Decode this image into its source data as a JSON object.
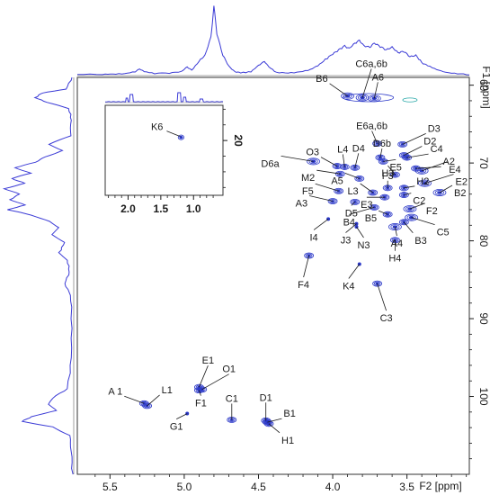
{
  "chart_data": {
    "type": "scatter",
    "subtype": "2D NMR HSQC contour spectrum",
    "xlabel": "F2 [ppm]",
    "ylabel": "F1 [ppm]",
    "xlim": [
      5.72,
      3.08
    ],
    "ylim": [
      59.0,
      110.0
    ],
    "x_inverted": true,
    "y_inverted": true,
    "x_ticks": [
      "5.5",
      "5.0",
      "4.5",
      "4.0",
      "3.5"
    ],
    "x_tick_values": [
      5.5,
      5.0,
      4.5,
      4.0,
      3.5
    ],
    "y_ticks": [
      "60",
      "70",
      "80",
      "90",
      "100"
    ],
    "y_tick_values": [
      60,
      70,
      80,
      90,
      100
    ],
    "grid": false,
    "contour_color": "#2b38c8",
    "spectrum_color": "#3b3bd6",
    "peaks": [
      {
        "label": "A 1",
        "x": 5.27,
        "y": 100.9
      },
      {
        "label": "L1",
        "x": 5.25,
        "y": 101.2
      },
      {
        "label": "E1",
        "x": 4.9,
        "y": 98.8
      },
      {
        "label": "O1",
        "x": 4.88,
        "y": 99.1
      },
      {
        "label": "F1",
        "x": 4.9,
        "y": 99.2
      },
      {
        "label": "G1",
        "x": 4.98,
        "y": 102.2
      },
      {
        "label": "C1",
        "x": 4.68,
        "y": 103.0
      },
      {
        "label": "D1",
        "x": 4.45,
        "y": 103.1
      },
      {
        "label": "B1",
        "x": 4.44,
        "y": 103.3
      },
      {
        "label": "H1",
        "x": 4.43,
        "y": 103.5
      },
      {
        "label": "B6",
        "x": 3.9,
        "y": 61.4
      },
      {
        "label": "C6a,6b",
        "x": 3.8,
        "y": 61.6
      },
      {
        "label": "A6",
        "x": 3.72,
        "y": 61.7
      },
      {
        "label": "E6a,6b",
        "x": 3.7,
        "y": 67.5
      },
      {
        "label": "D6b",
        "x": 3.68,
        "y": 69.3
      },
      {
        "label": "E5",
        "x": 3.66,
        "y": 69.8
      },
      {
        "label": "D6a",
        "x": 4.13,
        "y": 69.8
      },
      {
        "label": "O3",
        "x": 3.97,
        "y": 70.4
      },
      {
        "label": "L4",
        "x": 3.92,
        "y": 70.5
      },
      {
        "label": "D4",
        "x": 3.85,
        "y": 70.6
      },
      {
        "label": "M2",
        "x": 3.95,
        "y": 71.4
      },
      {
        "label": "A5",
        "x": 3.82,
        "y": 72.0
      },
      {
        "label": "D3",
        "x": 3.53,
        "y": 67.6
      },
      {
        "label": "D2",
        "x": 3.52,
        "y": 69.0
      },
      {
        "label": "C4",
        "x": 3.5,
        "y": 69.3
      },
      {
        "label": "A2",
        "x": 3.44,
        "y": 70.7
      },
      {
        "label": "E4",
        "x": 3.4,
        "y": 71.0
      },
      {
        "label": "H3",
        "x": 3.58,
        "y": 71.5
      },
      {
        "label": "E2",
        "x": 3.38,
        "y": 72.6
      },
      {
        "label": "H2",
        "x": 3.52,
        "y": 73.2
      },
      {
        "label": "B2",
        "x": 3.28,
        "y": 73.8
      },
      {
        "label": "F5",
        "x": 3.96,
        "y": 73.6
      },
      {
        "label": "L3",
        "x": 3.73,
        "y": 73.8
      },
      {
        "label": "F3",
        "x": 3.63,
        "y": 73.2
      },
      {
        "label": "E3",
        "x": 3.65,
        "y": 74.4
      },
      {
        "label": "C2",
        "x": 3.52,
        "y": 74.1
      },
      {
        "label": "F2",
        "x": 3.48,
        "y": 75.9
      },
      {
        "label": "A3",
        "x": 4.0,
        "y": 74.9
      },
      {
        "label": "D5",
        "x": 3.85,
        "y": 75.0
      },
      {
        "label": "B4",
        "x": 3.72,
        "y": 75.7
      },
      {
        "label": "B5",
        "x": 3.63,
        "y": 76.6
      },
      {
        "label": "C5",
        "x": 3.47,
        "y": 77.0
      },
      {
        "label": "B3",
        "x": 3.52,
        "y": 77.6
      },
      {
        "label": "A4",
        "x": 3.58,
        "y": 78.2
      },
      {
        "label": "I4",
        "x": 4.03,
        "y": 77.2
      },
      {
        "label": "J3",
        "x": 3.84,
        "y": 77.8
      },
      {
        "label": "N3",
        "x": 3.84,
        "y": 78.2
      },
      {
        "label": "H4",
        "x": 3.58,
        "y": 79.9
      },
      {
        "label": "F4",
        "x": 4.16,
        "y": 81.9
      },
      {
        "label": "K4",
        "x": 3.82,
        "y": 83.0
      },
      {
        "label": "C3",
        "x": 3.7,
        "y": 85.5
      }
    ],
    "inset": {
      "xlim": [
        2.35,
        0.55
      ],
      "ylim": [
        15.5,
        27.0
      ],
      "x_ticks": [
        "2.0",
        "1.5",
        "1.0"
      ],
      "x_tick_values": [
        2.0,
        1.5,
        1.0
      ],
      "y_ticks": [
        "20"
      ],
      "y_tick_values": [
        20
      ],
      "peaks": [
        {
          "label": "K6",
          "x": 1.19,
          "y": 19.6
        }
      ]
    },
    "f2_projection": [
      {
        "x": 5.72,
        "y": 0.01
      },
      {
        "x": 5.55,
        "y": 0.01
      },
      {
        "x": 5.48,
        "y": 0.015
      },
      {
        "x": 5.4,
        "y": 0.02
      },
      {
        "x": 5.33,
        "y": 0.05
      },
      {
        "x": 5.3,
        "y": 0.09
      },
      {
        "x": 5.27,
        "y": 0.05
      },
      {
        "x": 5.2,
        "y": 0.025
      },
      {
        "x": 5.1,
        "y": 0.03
      },
      {
        "x": 5.02,
        "y": 0.05
      },
      {
        "x": 4.98,
        "y": 0.12
      },
      {
        "x": 4.95,
        "y": 0.07
      },
      {
        "x": 4.9,
        "y": 0.2
      },
      {
        "x": 4.86,
        "y": 0.28
      },
      {
        "x": 4.82,
        "y": 0.55
      },
      {
        "x": 4.8,
        "y": 1.0
      },
      {
        "x": 4.78,
        "y": 0.6
      },
      {
        "x": 4.74,
        "y": 0.28
      },
      {
        "x": 4.7,
        "y": 0.13
      },
      {
        "x": 4.66,
        "y": 0.05
      },
      {
        "x": 4.62,
        "y": 0.035
      },
      {
        "x": 4.55,
        "y": 0.05
      },
      {
        "x": 4.5,
        "y": 0.14
      },
      {
        "x": 4.46,
        "y": 0.2
      },
      {
        "x": 4.43,
        "y": 0.12
      },
      {
        "x": 4.38,
        "y": 0.04
      },
      {
        "x": 4.3,
        "y": 0.03
      },
      {
        "x": 4.22,
        "y": 0.045
      },
      {
        "x": 4.15,
        "y": 0.08
      },
      {
        "x": 4.1,
        "y": 0.14
      },
      {
        "x": 4.05,
        "y": 0.22
      },
      {
        "x": 4.0,
        "y": 0.3
      },
      {
        "x": 3.96,
        "y": 0.36
      },
      {
        "x": 3.92,
        "y": 0.42
      },
      {
        "x": 3.89,
        "y": 0.38
      },
      {
        "x": 3.85,
        "y": 0.46
      },
      {
        "x": 3.82,
        "y": 0.5
      },
      {
        "x": 3.79,
        "y": 0.42
      },
      {
        "x": 3.75,
        "y": 0.4
      },
      {
        "x": 3.72,
        "y": 0.46
      },
      {
        "x": 3.68,
        "y": 0.41
      },
      {
        "x": 3.64,
        "y": 0.36
      },
      {
        "x": 3.6,
        "y": 0.4
      },
      {
        "x": 3.56,
        "y": 0.32
      },
      {
        "x": 3.52,
        "y": 0.34
      },
      {
        "x": 3.48,
        "y": 0.26
      },
      {
        "x": 3.44,
        "y": 0.28
      },
      {
        "x": 3.4,
        "y": 0.18
      },
      {
        "x": 3.36,
        "y": 0.14
      },
      {
        "x": 3.3,
        "y": 0.08
      },
      {
        "x": 3.24,
        "y": 0.04
      },
      {
        "x": 3.16,
        "y": 0.02
      },
      {
        "x": 3.08,
        "y": 0.01
      }
    ],
    "f1_projection": [
      {
        "y": 59.0,
        "v": 0.01
      },
      {
        "y": 60.5,
        "v": 0.1
      },
      {
        "y": 61.0,
        "v": 0.45
      },
      {
        "y": 61.6,
        "v": 0.55
      },
      {
        "y": 62.2,
        "v": 0.38
      },
      {
        "y": 63.0,
        "v": 0.06
      },
      {
        "y": 64.5,
        "v": 0.02
      },
      {
        "y": 66.5,
        "v": 0.04
      },
      {
        "y": 67.6,
        "v": 0.35
      },
      {
        "y": 68.4,
        "v": 0.15
      },
      {
        "y": 69.2,
        "v": 0.4
      },
      {
        "y": 69.9,
        "v": 0.55
      },
      {
        "y": 70.6,
        "v": 0.85
      },
      {
        "y": 71.3,
        "v": 0.62
      },
      {
        "y": 72.0,
        "v": 0.9
      },
      {
        "y": 72.6,
        "v": 0.7
      },
      {
        "y": 73.3,
        "v": 1.0
      },
      {
        "y": 74.0,
        "v": 0.78
      },
      {
        "y": 74.7,
        "v": 0.92
      },
      {
        "y": 75.4,
        "v": 0.7
      },
      {
        "y": 76.0,
        "v": 0.95
      },
      {
        "y": 76.7,
        "v": 0.6
      },
      {
        "y": 77.5,
        "v": 0.35
      },
      {
        "y": 78.3,
        "v": 0.2
      },
      {
        "y": 79.2,
        "v": 0.3
      },
      {
        "y": 80.2,
        "v": 0.12
      },
      {
        "y": 81.5,
        "v": 0.2
      },
      {
        "y": 82.5,
        "v": 0.08
      },
      {
        "y": 84.0,
        "v": 0.05
      },
      {
        "y": 85.5,
        "v": 0.12
      },
      {
        "y": 87.0,
        "v": 0.03
      },
      {
        "y": 90.0,
        "v": 0.02
      },
      {
        "y": 95.0,
        "v": 0.02
      },
      {
        "y": 99.0,
        "v": 0.08
      },
      {
        "y": 100.2,
        "v": 0.3
      },
      {
        "y": 101.0,
        "v": 0.35
      },
      {
        "y": 101.8,
        "v": 0.25
      },
      {
        "y": 102.6,
        "v": 0.6
      },
      {
        "y": 103.2,
        "v": 0.75
      },
      {
        "y": 103.9,
        "v": 0.3
      },
      {
        "y": 105.0,
        "v": 0.05
      },
      {
        "y": 107.0,
        "v": 0.02
      },
      {
        "y": 110.0,
        "v": 0.01
      }
    ]
  }
}
